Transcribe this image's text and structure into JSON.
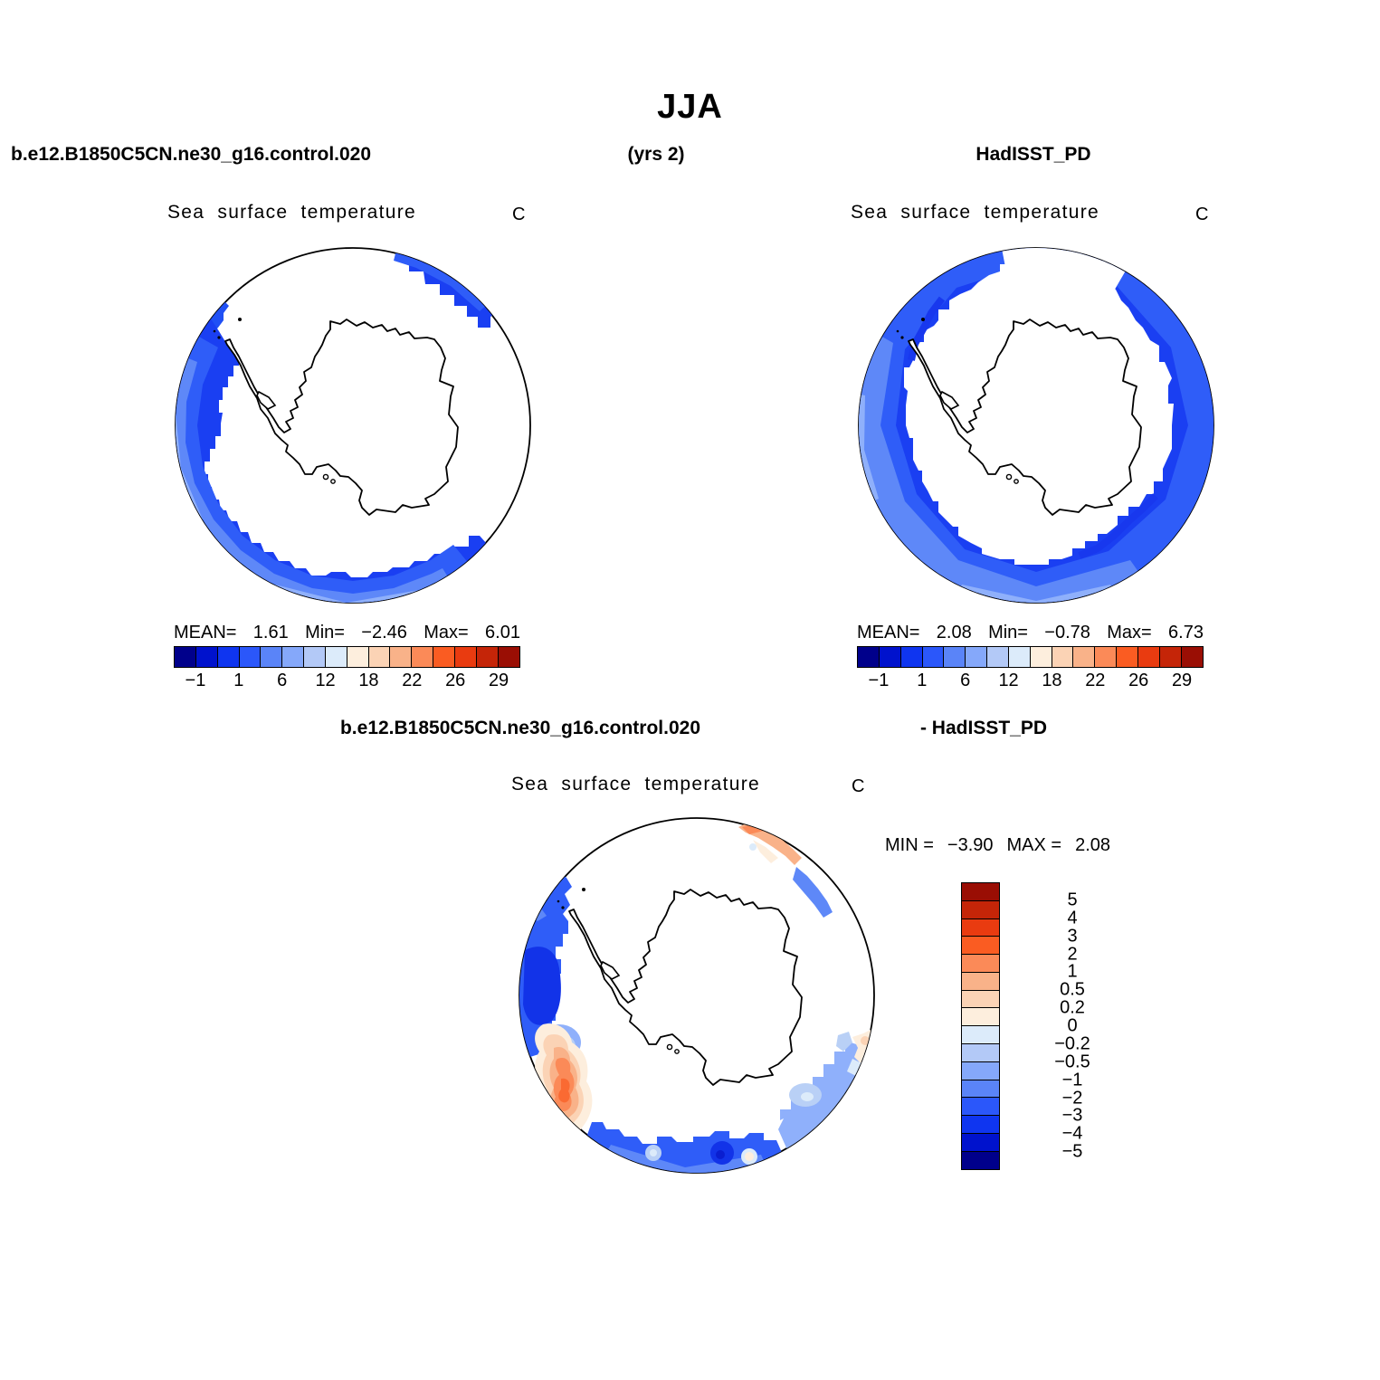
{
  "header": {
    "title": "JJA",
    "left": "b.e12.B1850C5CN.ne30_g16.control.020",
    "center": "(yrs 2)",
    "right": "HadISST_PD"
  },
  "row2": {
    "left": "b.e12.B1850C5CN.ne30_g16.control.020",
    "right": "- HadISST_PD"
  },
  "panel_model": {
    "title": "Sea surface temperature",
    "units": "C",
    "stats": {
      "mean_label": "MEAN=",
      "mean": "1.61",
      "min_label": "Min=",
      "min": "−2.46",
      "max_label": "Max=",
      "max": "6.01"
    }
  },
  "panel_obs": {
    "title": "Sea surface temperature",
    "units": "C",
    "stats": {
      "mean_label": "MEAN=",
      "mean": "2.08",
      "min_label": "Min=",
      "min": "−0.78",
      "max_label": "Max=",
      "max": "6.73"
    }
  },
  "panel_diff": {
    "title": "Sea surface temperature",
    "units": "C",
    "minmax": {
      "min_label": "MIN =",
      "min": "−3.90",
      "max_label": "MAX =",
      "max": "2.08"
    }
  },
  "sst_colorbar": {
    "labels": [
      "−1",
      "1",
      "6",
      "12",
      "18",
      "22",
      "26",
      "29"
    ],
    "colors": [
      "#00008b",
      "#0012cd",
      "#0f35f0",
      "#2b57fa",
      "#5a84f8",
      "#85a8fa",
      "#b3c9f7",
      "#dcebfa",
      "#fdeedd",
      "#fbd3b5",
      "#f9b289",
      "#fb8a58",
      "#fa5c22",
      "#e93b10",
      "#c52508",
      "#9a0e04"
    ]
  },
  "diff_colorbar": {
    "labels": [
      "5",
      "4",
      "3",
      "2",
      "1",
      "0.5",
      "0.2",
      "0",
      "−0.2",
      "−0.5",
      "−1",
      "−2",
      "−3",
      "−4",
      "−5"
    ]
  },
  "chart_data": [
    {
      "type": "heatmap",
      "panel": "top-left",
      "title": "Sea surface temperature",
      "dataset": "b.e12.B1850C5CN.ne30_g16.control.020",
      "season": "JJA",
      "period": "(yrs 2)",
      "units": "C",
      "projection": "southern-hemisphere polar (Antarctica centered)",
      "stats": {
        "mean": 1.61,
        "min": -2.46,
        "max": 6.01
      },
      "colorbar_ticks": [
        -1,
        1,
        6,
        12,
        18,
        22,
        26,
        29
      ],
      "n_color_bins": 16,
      "legend_position": "bottom"
    },
    {
      "type": "heatmap",
      "panel": "top-right",
      "title": "Sea surface temperature",
      "dataset": "HadISST_PD",
      "season": "JJA",
      "units": "C",
      "projection": "southern-hemisphere polar (Antarctica centered)",
      "stats": {
        "mean": 2.08,
        "min": -0.78,
        "max": 6.73
      },
      "colorbar_ticks": [
        -1,
        1,
        6,
        12,
        18,
        22,
        26,
        29
      ],
      "n_color_bins": 16,
      "legend_position": "bottom"
    },
    {
      "type": "heatmap",
      "panel": "bottom-center",
      "title": "Sea surface temperature",
      "dataset": "b.e12.B1850C5CN.ne30_g16.control.020 - HadISST_PD",
      "season": "JJA",
      "units": "C",
      "projection": "southern-hemisphere polar (Antarctica centered)",
      "stats": {
        "min": -3.9,
        "max": 2.08
      },
      "colorbar_ticks": [
        5,
        4,
        3,
        2,
        1,
        0.5,
        0.2,
        0,
        -0.2,
        -0.5,
        -1,
        -2,
        -3,
        -4,
        -5
      ],
      "n_color_bins": 16,
      "legend_position": "right"
    }
  ]
}
